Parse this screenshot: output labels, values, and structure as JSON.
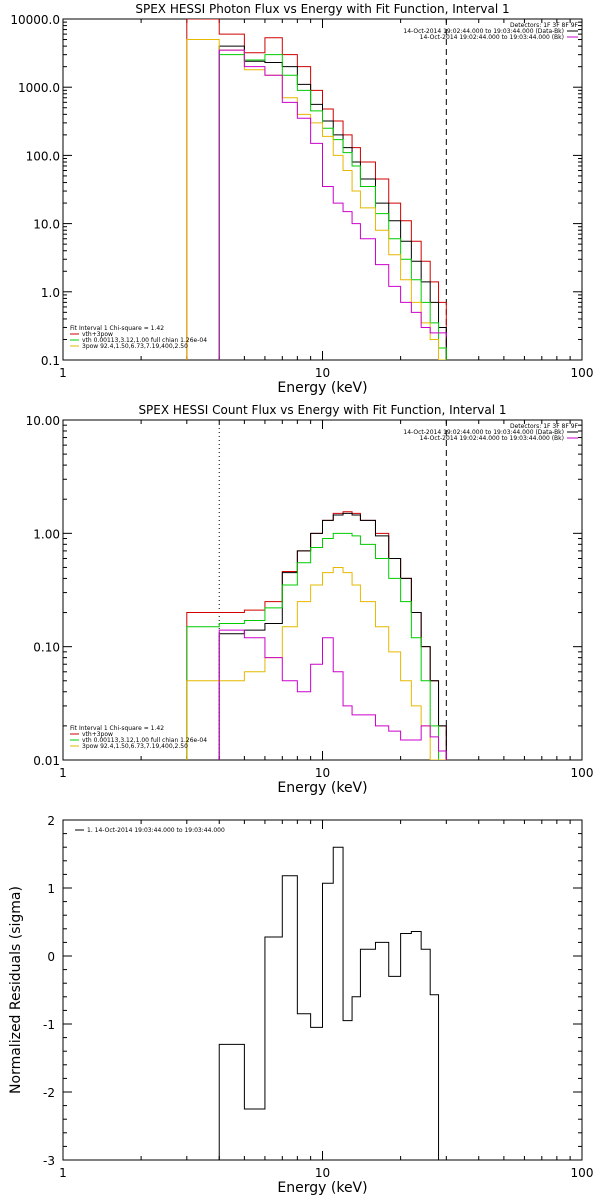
{
  "chart_data": [
    {
      "type": "line",
      "title": "SPEX HESSI Photon Flux vs Energy with Fit Function, Interval 1",
      "xlabel": "Energy (keV)",
      "ylabel": "",
      "xscale": "log",
      "yscale": "log",
      "xlim": [
        1,
        100
      ],
      "ylim": [
        0.1,
        10000
      ],
      "x_ticks": [
        "1",
        "10",
        "100"
      ],
      "y_ticks": [
        "0.1",
        "1.0",
        "10.0",
        "100.0",
        "1000.0",
        "10000.0"
      ],
      "info_lines": [
        "Detectors: 1F 3F 8F 9F",
        "14-Oct-2014 19:02:44.000 to 19:03:44.000 (Data-Bk)",
        "14-Oct-2014 19:02:44.000 to 19:03:44.000 (Bk)"
      ],
      "legend_lines": [
        "Fit Interval 1    Chi-square = 1.42",
        "vth+3pow",
        "vth 0.00113,3.12,1.00  full chian 1.26e-04",
        "3pow 92.4,1.50,6.73,7.19,400,2.50"
      ],
      "series": [
        {
          "name": "vth+3pow",
          "color": "#d00000",
          "edges": [
            3,
            4,
            5,
            6,
            7,
            8,
            9,
            10,
            11,
            12,
            13,
            14,
            16,
            18,
            20,
            22,
            24,
            26,
            28,
            30
          ],
          "values": [
            10000,
            6000,
            3200,
            5300,
            3000,
            2000,
            900,
            480,
            320,
            200,
            130,
            80,
            45,
            20,
            11,
            5.5,
            2.8,
            1.4,
            0.7
          ]
        },
        {
          "name": "total",
          "color": "#000000",
          "edges": [
            4,
            5,
            6,
            7,
            8,
            9,
            10,
            11,
            12,
            13,
            14,
            16,
            18,
            20,
            22,
            24,
            26,
            28,
            30
          ],
          "values": [
            4000,
            2400,
            2300,
            2000,
            1100,
            560,
            320,
            200,
            130,
            80,
            45,
            20,
            11,
            5.5,
            2.8,
            1.4,
            0.7,
            0.3
          ]
        },
        {
          "name": "vth",
          "color": "#00cc00",
          "edges": [
            4,
            5,
            6,
            7,
            8,
            9,
            10,
            11,
            12,
            13,
            14,
            16,
            18,
            20,
            22,
            24,
            26,
            28,
            30
          ],
          "values": [
            3000,
            2500,
            3000,
            1500,
            900,
            450,
            250,
            170,
            110,
            70,
            35,
            14,
            6,
            3,
            1.5,
            0.7,
            0.35,
            0.15
          ]
        },
        {
          "name": "3pow",
          "color": "#e6b800",
          "edges": [
            3,
            4,
            5,
            6,
            7,
            8,
            9,
            10,
            11,
            12,
            13,
            14,
            16,
            18,
            20,
            22,
            24,
            26,
            28,
            30
          ],
          "values": [
            5000,
            3500,
            1800,
            1500,
            700,
            400,
            300,
            190,
            100,
            60,
            30,
            17,
            8,
            3.5,
            1.5,
            0.7,
            0.35,
            0.2,
            0.1
          ]
        },
        {
          "name": "Bk",
          "color": "#cc00cc",
          "edges": [
            4,
            5,
            6,
            7,
            8,
            9,
            10,
            11,
            12,
            13,
            14,
            16,
            18,
            20,
            22,
            24,
            26,
            28,
            30
          ],
          "values": [
            3500,
            2000,
            1500,
            600,
            350,
            150,
            35,
            20,
            15,
            10,
            6,
            2.5,
            1.2,
            0.7,
            0.5,
            0.3,
            0.25,
            0.25,
            0.22
          ]
        }
      ]
    },
    {
      "type": "line",
      "title": "SPEX HESSI Count Flux vs Energy with Fit Function, Interval 1",
      "xlabel": "Energy (keV)",
      "ylabel": "",
      "xscale": "log",
      "yscale": "log",
      "xlim": [
        1,
        100
      ],
      "ylim": [
        0.01,
        10
      ],
      "x_ticks": [
        "1",
        "10",
        "100"
      ],
      "y_ticks": [
        "0.01",
        "0.10",
        "1.00",
        "10.00"
      ],
      "info_lines": [
        "Detectors: 1F 3F 8F 9F",
        "14-Oct-2014 19:02:44.000 to 19:03:44.000 (Data-Bk)",
        "14-Oct-2014 19:02:44.000 to 19:03:44.000 (Bk)"
      ],
      "legend_lines": [
        "Fit Interval 1    Chi-square = 1.42",
        "vth+3pow",
        "vth 0.00113,3.12,1.00  full chian 1.26e-04",
        "3pow 92.4,1.50,6.73,7.19,400,2.50"
      ],
      "series": [
        {
          "name": "vth+3pow",
          "color": "#d00000",
          "edges": [
            3,
            4,
            5,
            6,
            7,
            8,
            9,
            10,
            11,
            12,
            13,
            14,
            16,
            18,
            20,
            22,
            24,
            26,
            28,
            30
          ],
          "values": [
            0.2,
            0.2,
            0.21,
            0.25,
            0.46,
            0.7,
            1.0,
            1.3,
            1.5,
            1.55,
            1.5,
            1.3,
            1.0,
            0.6,
            0.4,
            0.2,
            0.1,
            0.05,
            0.02
          ]
        },
        {
          "name": "total",
          "color": "#000000",
          "edges": [
            4,
            5,
            6,
            7,
            8,
            9,
            10,
            11,
            12,
            13,
            14,
            16,
            18,
            20,
            22,
            24,
            26,
            28,
            30
          ],
          "values": [
            0.13,
            0.14,
            0.16,
            0.45,
            0.7,
            1.0,
            1.3,
            1.45,
            1.5,
            1.45,
            1.3,
            0.95,
            0.6,
            0.4,
            0.2,
            0.1,
            0.05,
            0.02
          ]
        },
        {
          "name": "vth",
          "color": "#00cc00",
          "edges": [
            3,
            4,
            5,
            6,
            7,
            8,
            9,
            10,
            11,
            12,
            13,
            14,
            16,
            18,
            20,
            22,
            24,
            26,
            28,
            30
          ],
          "values": [
            0.15,
            0.16,
            0.17,
            0.22,
            0.35,
            0.55,
            0.75,
            0.9,
            1.0,
            1.0,
            0.95,
            0.8,
            0.6,
            0.4,
            0.25,
            0.12,
            0.05,
            0.02,
            0.01
          ]
        },
        {
          "name": "3pow",
          "color": "#e6b800",
          "edges": [
            3,
            4,
            5,
            6,
            7,
            8,
            9,
            10,
            11,
            12,
            13,
            14,
            16,
            18,
            20,
            22,
            24,
            26,
            28,
            30
          ],
          "values": [
            0.05,
            0.05,
            0.06,
            0.08,
            0.15,
            0.25,
            0.35,
            0.45,
            0.5,
            0.45,
            0.35,
            0.25,
            0.15,
            0.09,
            0.05,
            0.03,
            0.02,
            0.01,
            0.01
          ]
        },
        {
          "name": "Bk",
          "color": "#cc00cc",
          "edges": [
            4,
            5,
            6,
            7,
            8,
            9,
            10,
            11,
            12,
            13,
            14,
            16,
            18,
            20,
            22,
            24,
            26,
            28,
            30
          ],
          "values": [
            0.14,
            0.12,
            0.08,
            0.05,
            0.04,
            0.07,
            0.12,
            0.06,
            0.03,
            0.025,
            0.025,
            0.02,
            0.018,
            0.015,
            0.015,
            0.02,
            0.016,
            0.012
          ]
        }
      ]
    },
    {
      "type": "line",
      "title": "",
      "xlabel": "Energy (keV)",
      "ylabel": "Normalized Residuals (sigma)",
      "xscale": "log",
      "yscale": "linear",
      "xlim": [
        1,
        100
      ],
      "ylim": [
        -3,
        2
      ],
      "x_ticks": [
        "1",
        "10",
        "100"
      ],
      "y_ticks": [
        "-3",
        "-2",
        "-1",
        "0",
        "1",
        "2"
      ],
      "legend_lines": [
        "1. 14-Oct-2014 19:03:44.000 to 19:03:44.000"
      ],
      "series": [
        {
          "name": "1",
          "color": "#000000",
          "edges": [
            4,
            5,
            6,
            7,
            8,
            9,
            10,
            11,
            12,
            13,
            14,
            16,
            18,
            20,
            22,
            24,
            26,
            28,
            30
          ],
          "values": [
            -1.3,
            -2.25,
            0.28,
            1.18,
            -0.85,
            -1.05,
            1.07,
            1.6,
            -0.95,
            -0.6,
            0.1,
            0.2,
            -0.3,
            0.33,
            0.36,
            0.1,
            -0.57,
            -3
          ]
        }
      ]
    }
  ]
}
